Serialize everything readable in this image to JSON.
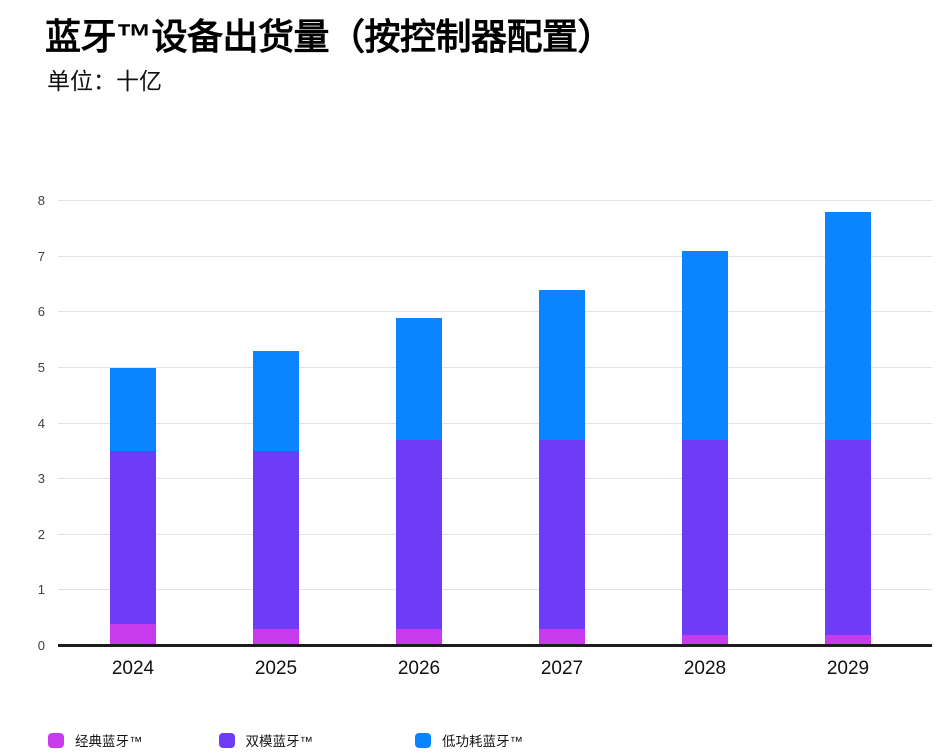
{
  "chart_data": {
    "type": "bar",
    "stacked": true,
    "title": "蓝牙™设备出货量（按控制器配置）",
    "subtitle": "单位：十亿",
    "categories": [
      "2024",
      "2025",
      "2026",
      "2027",
      "2028",
      "2029"
    ],
    "series": [
      {
        "name": "经典蓝牙™",
        "color": "#c73bec",
        "values": [
          0.4,
          0.3,
          0.3,
          0.3,
          0.2,
          0.2
        ]
      },
      {
        "name": "双模蓝牙™",
        "color": "#6e3cf7",
        "values": [
          3.1,
          3.2,
          3.4,
          3.4,
          3.5,
          3.5
        ]
      },
      {
        "name": "低功耗蓝牙™",
        "color": "#0a84ff",
        "values": [
          1.5,
          1.8,
          2.2,
          2.7,
          3.4,
          4.1
        ]
      }
    ],
    "totals": [
      5.0,
      5.3,
      5.9,
      6.4,
      7.1,
      7.8
    ],
    "xlabel": "",
    "ylabel": "",
    "ylim": [
      0,
      8
    ],
    "yticks": [
      0,
      1,
      2,
      3,
      4,
      5,
      6,
      7,
      8
    ],
    "grid": "horizontal",
    "legend_position": "bottom",
    "colors": {
      "grid": "#e2e2e2",
      "axis": "#1c1c1c",
      "tick_label": "#404040",
      "x_label": "#111111",
      "background": "#ffffff"
    }
  }
}
